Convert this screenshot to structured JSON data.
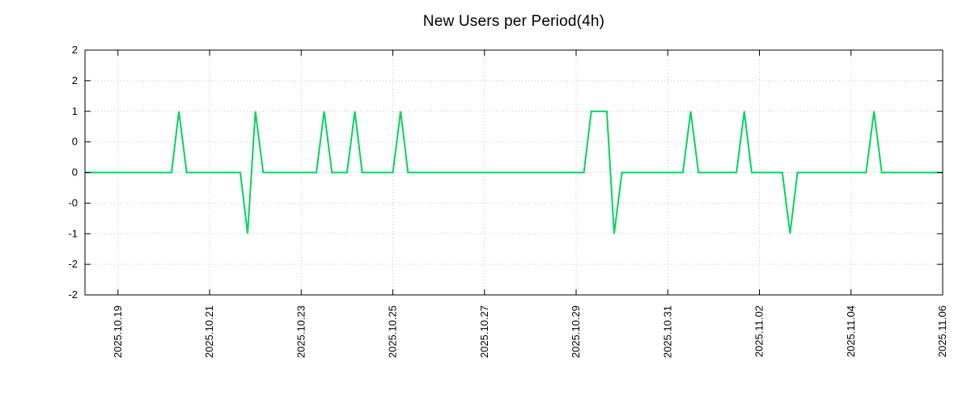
{
  "chart_data": {
    "type": "line",
    "title": "New Users per Period(4h)",
    "line_color": "#00d45f",
    "background_color": "#ffffff",
    "grid_color": "#c4c4c4",
    "axis_color": "#000000",
    "grid": true,
    "legend": "none",
    "xlabel": "",
    "ylabel": "",
    "x_unit": "days offset from 2025.10.19 00:00, sampled every 4h",
    "xlim": [
      -0.72,
      18
    ],
    "ylim": [
      -2,
      2
    ],
    "x_ticks": [
      {
        "offset": 0,
        "label": "2025.10.19"
      },
      {
        "offset": 2,
        "label": "2025.10.21"
      },
      {
        "offset": 4,
        "label": "2025.10.23"
      },
      {
        "offset": 6,
        "label": "2025.10.25"
      },
      {
        "offset": 8,
        "label": "2025.10.27"
      },
      {
        "offset": 10,
        "label": "2025.10.29"
      },
      {
        "offset": 12,
        "label": "2025.10.31"
      },
      {
        "offset": 14,
        "label": "2025.11.02"
      },
      {
        "offset": 16,
        "label": "2025.11.04"
      },
      {
        "offset": 18,
        "label": "2025.11.06"
      }
    ],
    "y_ticks": [
      {
        "value": 2,
        "label": "2"
      },
      {
        "value": 1.5,
        "label": "2"
      },
      {
        "value": 1,
        "label": "1"
      },
      {
        "value": 0.5,
        "label": "0"
      },
      {
        "value": 0,
        "label": "0"
      },
      {
        "value": -0.5,
        "label": "-0"
      },
      {
        "value": -1,
        "label": "-1"
      },
      {
        "value": -1.5,
        "label": "-2"
      },
      {
        "value": -2,
        "label": "-2"
      }
    ],
    "points": [
      [
        -0.72,
        0
      ],
      [
        1.17,
        0
      ],
      [
        1.33,
        1
      ],
      [
        1.5,
        0
      ],
      [
        2.67,
        0
      ],
      [
        2.83,
        -1
      ],
      [
        3.0,
        1
      ],
      [
        3.17,
        0
      ],
      [
        4.33,
        0
      ],
      [
        4.5,
        1
      ],
      [
        4.67,
        0
      ],
      [
        5.0,
        0
      ],
      [
        5.17,
        1
      ],
      [
        5.33,
        0
      ],
      [
        6.0,
        0
      ],
      [
        6.17,
        1
      ],
      [
        6.33,
        0
      ],
      [
        10.17,
        0
      ],
      [
        10.33,
        1
      ],
      [
        10.67,
        1
      ],
      [
        10.83,
        -1
      ],
      [
        11.0,
        0
      ],
      [
        12.33,
        0
      ],
      [
        12.5,
        1
      ],
      [
        12.67,
        0
      ],
      [
        13.5,
        0
      ],
      [
        13.67,
        1
      ],
      [
        13.83,
        0
      ],
      [
        14.5,
        0
      ],
      [
        14.67,
        -1
      ],
      [
        14.83,
        0
      ],
      [
        16.33,
        0
      ],
      [
        16.5,
        1
      ],
      [
        16.67,
        0
      ],
      [
        18,
        0
      ]
    ]
  }
}
